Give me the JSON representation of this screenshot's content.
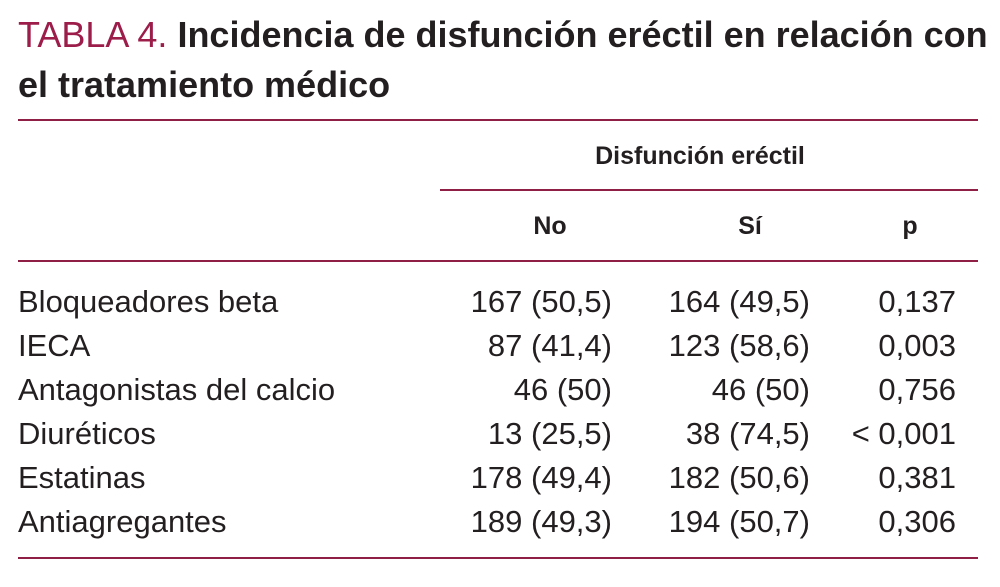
{
  "title": {
    "label": "TABLA 4.",
    "text": "Incidencia de disfunción eréctil en relación con el tratamiento médico"
  },
  "table": {
    "group_header": "Disfunción eréctil",
    "columns": [
      "No",
      "Sí",
      "p"
    ],
    "rows": [
      {
        "name": "Bloqueadores beta",
        "no": "167 (50,5)",
        "si": "164 (49,5)",
        "p": "0,137"
      },
      {
        "name": "IECA",
        "no": "87 (41,4)",
        "si": "123 (58,6)",
        "p": "0,003"
      },
      {
        "name": "Antagonistas del calcio",
        "no": "46 (50)",
        "si": "46 (50)",
        "p": "0,756"
      },
      {
        "name": "Diuréticos",
        "no": "13 (25,5)",
        "si": "38 (74,5)",
        "p": "< 0,001"
      },
      {
        "name": "Estatinas",
        "no": "178 (49,4)",
        "si": "182 (50,6)",
        "p": "0,381"
      },
      {
        "name": "Antiagregantes",
        "no": "189 (49,3)",
        "si": "194 (50,7)",
        "p": "0,306"
      }
    ]
  },
  "colors": {
    "accent": "#9c1d4a",
    "rule": "#8f1f45",
    "text": "#231f20"
  }
}
